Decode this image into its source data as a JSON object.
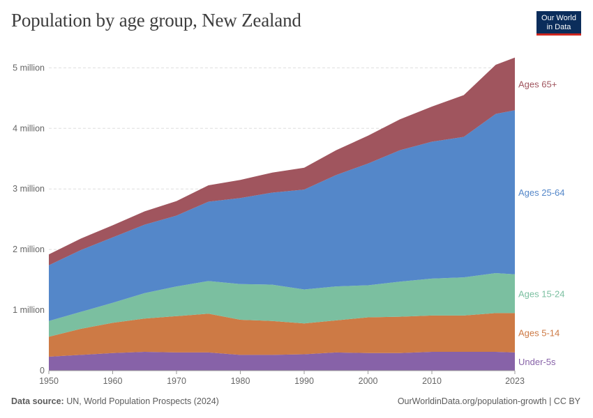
{
  "title": "Population by age group, New Zealand",
  "logo": {
    "line1": "Our World",
    "line2": "in Data"
  },
  "footer": {
    "source_label": "Data source:",
    "source_text": "UN, World Population Prospects (2024)",
    "url": "OurWorldinData.org/population-growth | CC BY"
  },
  "colors": {
    "under5": "#8762a8",
    "age5_14": "#cd7a45",
    "age15_24": "#7bbfa0",
    "age25_64": "#5487c9",
    "age65": "#a0555e"
  },
  "chart_data": {
    "type": "area",
    "stacked": true,
    "x": [
      1950,
      1955,
      1960,
      1965,
      1970,
      1975,
      1980,
      1985,
      1990,
      1995,
      2000,
      2005,
      2010,
      2015,
      2020,
      2023
    ],
    "ylim": [
      0,
      5200000
    ],
    "yticks": [
      0,
      1000000,
      2000000,
      3000000,
      4000000,
      5000000
    ],
    "ytick_labels": [
      "0",
      "1 million",
      "2 million",
      "3 million",
      "4 million",
      "5 million"
    ],
    "xticks": [
      1950,
      1960,
      1970,
      1980,
      1990,
      2000,
      2010,
      2023
    ],
    "series": [
      {
        "name": "Under-5s",
        "color_key": "under5",
        "values": [
          230000,
          260000,
          290000,
          310000,
          300000,
          300000,
          260000,
          260000,
          270000,
          300000,
          290000,
          290000,
          310000,
          310000,
          310000,
          300000
        ]
      },
      {
        "name": "Ages 5-14",
        "color_key": "age5_14",
        "values": [
          330000,
          430000,
          500000,
          550000,
          600000,
          640000,
          580000,
          560000,
          510000,
          530000,
          590000,
          600000,
          600000,
          600000,
          640000,
          650000
        ]
      },
      {
        "name": "Ages 15-24",
        "color_key": "age15_24",
        "values": [
          260000,
          280000,
          330000,
          420000,
          490000,
          540000,
          590000,
          600000,
          560000,
          560000,
          530000,
          580000,
          610000,
          630000,
          660000,
          640000
        ]
      },
      {
        "name": "Ages 25-64",
        "color_key": "age25_64",
        "values": [
          920000,
          1020000,
          1080000,
          1130000,
          1170000,
          1310000,
          1420000,
          1520000,
          1650000,
          1840000,
          2010000,
          2170000,
          2260000,
          2320000,
          2630000,
          2710000
        ]
      },
      {
        "name": "Ages 65+",
        "color_key": "age65",
        "values": [
          180000,
          190000,
          200000,
          220000,
          240000,
          270000,
          300000,
          330000,
          360000,
          410000,
          460000,
          510000,
          580000,
          690000,
          810000,
          870000
        ]
      }
    ]
  }
}
